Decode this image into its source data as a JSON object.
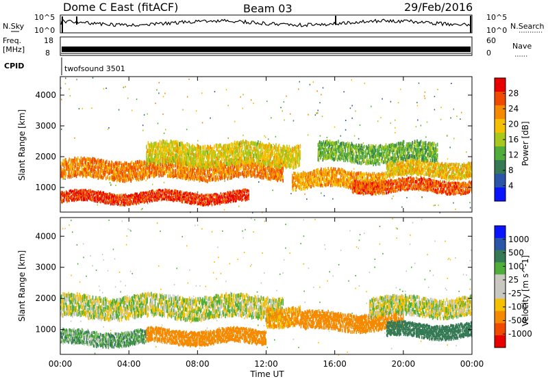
{
  "header": {
    "radar": "Dome C East (fitACF)",
    "beam": "Beam 03",
    "date": "29/Feb/2016"
  },
  "labels": {
    "nsky": "N.Sky",
    "nsky_top": "10^5",
    "nsky_bottom": "10^0",
    "nsearch": "N.Search",
    "nsearch_top": "10^5",
    "nsearch_bottom": "10^0",
    "freq_line1": "Freq.",
    "freq_line2": "[MHz]",
    "freq_top": "18",
    "freq_bottom": "8",
    "nave": "Nave",
    "nave_top": "60",
    "nave_bottom": "0",
    "cpid": "CPID",
    "cpid_value": "twofsound 3501",
    "xlabel": "Time UT",
    "ylabel": "Slant Range [km]"
  },
  "colors": {
    "power_scale": [
      "#0a14ff",
      "#2a55a8",
      "#357a55",
      "#4fae3a",
      "#a8c81e",
      "#f5c000",
      "#f58a00",
      "#f04a00",
      "#e80000"
    ],
    "velocity_scale": [
      "#e80000",
      "#f04a00",
      "#f58a00",
      "#f5c000",
      "#c8c8c0",
      "#c8c8c0",
      "#4fae3a",
      "#357a55",
      "#2a55a8",
      "#0a14ff"
    ]
  },
  "chart_data": [
    {
      "type": "heatmap",
      "name": "power",
      "x_ticks": [
        "00:00",
        "04:00",
        "08:00",
        "12:00",
        "16:00",
        "20:00",
        "00:00"
      ],
      "xlabel": "Time UT",
      "ylabel": "Slant Range [km]",
      "xlim_hours": [
        0,
        24
      ],
      "ylim": [
        200,
        4600
      ],
      "y_ticks": [
        1000,
        2000,
        3000,
        4000
      ],
      "colorbar": {
        "label": "Power [dB]",
        "range": [
          0,
          32
        ],
        "ticks": [
          "4",
          "8",
          "12",
          "16",
          "20",
          "24",
          "28"
        ]
      },
      "bands": [
        {
          "t": [
            0,
            11
          ],
          "r": [
            450,
            800
          ],
          "value": 28
        },
        {
          "t": [
            0,
            13
          ],
          "r": [
            1250,
            1850
          ],
          "value": 24
        },
        {
          "t": [
            5,
            14
          ],
          "r": [
            1700,
            2400
          ],
          "value": 18
        },
        {
          "t": [
            13.5,
            19
          ],
          "r": [
            950,
            1500
          ],
          "value": 22
        },
        {
          "t": [
            17,
            24
          ],
          "r": [
            800,
            1200
          ],
          "value": 26
        },
        {
          "t": [
            19,
            24
          ],
          "r": [
            1300,
            1800
          ],
          "value": 20
        },
        {
          "t": [
            15,
            22
          ],
          "r": [
            1800,
            2400
          ],
          "value": 13
        }
      ]
    },
    {
      "type": "heatmap",
      "name": "velocity",
      "x_ticks": [
        "00:00",
        "04:00",
        "08:00",
        "12:00",
        "16:00",
        "20:00",
        "00:00"
      ],
      "xlabel": "Time UT",
      "ylabel": "Slant Range [km]",
      "xlim_hours": [
        0,
        24
      ],
      "ylim": [
        200,
        4600
      ],
      "y_ticks": [
        1000,
        2000,
        3000,
        4000
      ],
      "colorbar": {
        "label": "Velocity [m s^-1]",
        "ticks": [
          "1000",
          "500",
          "100",
          "25",
          "-25",
          "-100",
          "-500",
          "-1000"
        ]
      },
      "bands": [
        {
          "t": [
            0,
            13
          ],
          "r": [
            1350,
            2050
          ],
          "value": 0
        },
        {
          "t": [
            0,
            5
          ],
          "r": [
            450,
            900
          ],
          "value": 80
        },
        {
          "t": [
            5,
            12
          ],
          "r": [
            500,
            950
          ],
          "value": -300
        },
        {
          "t": [
            12,
            14
          ],
          "r": [
            1100,
            1700
          ],
          "value": -150
        },
        {
          "t": [
            14,
            20
          ],
          "r": [
            950,
            1500
          ],
          "value": -200
        },
        {
          "t": [
            19,
            24
          ],
          "r": [
            700,
            1150
          ],
          "value": 300
        },
        {
          "t": [
            18,
            24
          ],
          "r": [
            1400,
            2000
          ],
          "value": 0
        }
      ]
    }
  ]
}
